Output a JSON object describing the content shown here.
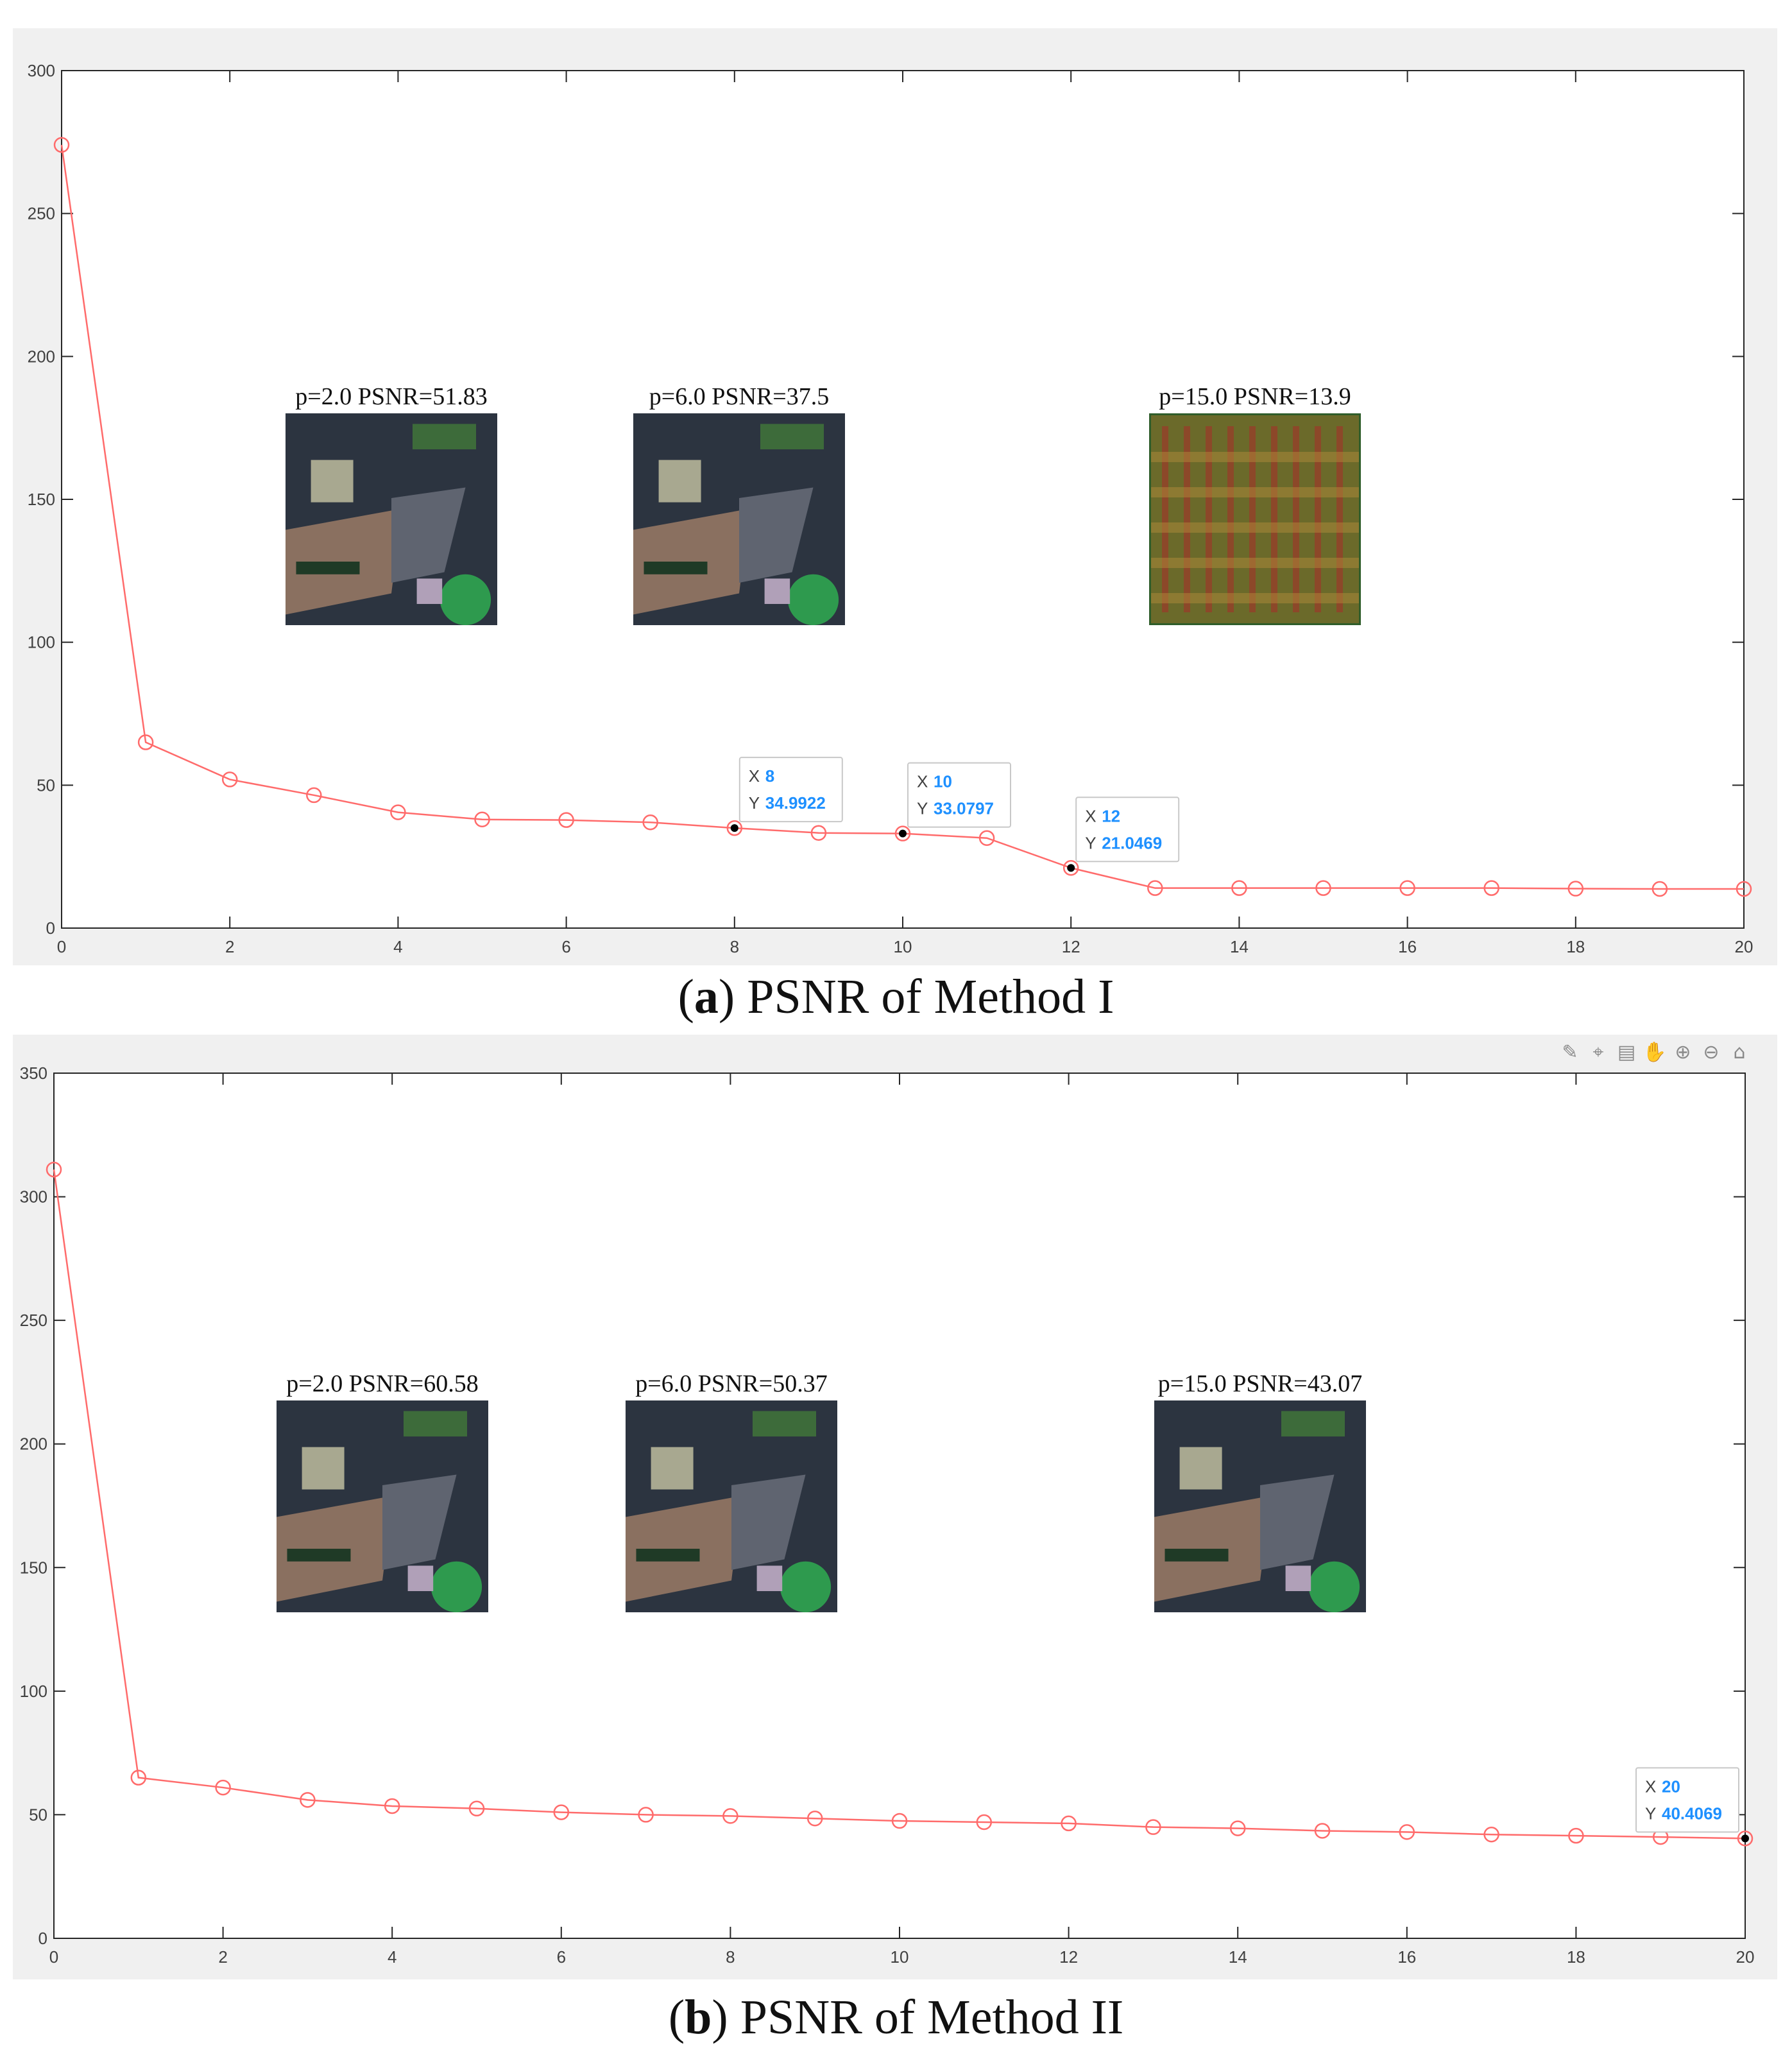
{
  "chart_data": [
    {
      "type": "line",
      "x": [
        0,
        1,
        2,
        3,
        4,
        5,
        6,
        7,
        8,
        9,
        10,
        11,
        12,
        13,
        14,
        15,
        16,
        17,
        18,
        19,
        20
      ],
      "series": [
        {
          "values": [
            274,
            65,
            52,
            46.5,
            40.5,
            38,
            37.8,
            37,
            34.9922,
            33.3,
            33.0797,
            31.5,
            21.0469,
            14,
            14,
            14,
            14,
            14,
            13.8,
            13.7,
            13.7
          ]
        }
      ],
      "xlim": [
        0,
        20
      ],
      "ylim": [
        0,
        300
      ],
      "xticks": [
        0,
        2,
        4,
        6,
        8,
        10,
        12,
        14,
        16,
        18,
        20
      ],
      "yticks": [
        0,
        50,
        100,
        150,
        200,
        250,
        300
      ],
      "line_color": "#ff6b6b",
      "grid": false,
      "datatips": [
        {
          "x_label": "X",
          "x_value": "8",
          "y_label": "Y",
          "y_value": "34.9922",
          "x": 8,
          "y": 34.9922
        },
        {
          "x_label": "X",
          "x_value": "10",
          "y_label": "Y",
          "y_value": "33.0797",
          "x": 10,
          "y": 33.0797
        },
        {
          "x_label": "X",
          "x_value": "12",
          "y_label": "Y",
          "y_value": "21.0469",
          "x": 12,
          "y": 21.0469
        }
      ],
      "inset_images": [
        {
          "label": "p=2.0   PSNR=51.83",
          "style": "aerial"
        },
        {
          "label": "p=6.0   PSNR=37.5",
          "style": "aerial"
        },
        {
          "label": "p=15.0   PSNR=13.9",
          "style": "distorted"
        }
      ],
      "caption_letter": "a",
      "caption_text": " PSNR of Method I"
    },
    {
      "type": "line",
      "x": [
        0,
        1,
        2,
        3,
        4,
        5,
        6,
        7,
        8,
        9,
        10,
        11,
        12,
        13,
        14,
        15,
        16,
        17,
        18,
        19,
        20
      ],
      "series": [
        {
          "values": [
            311,
            65,
            61,
            56,
            53.5,
            52.5,
            51,
            50,
            49.5,
            48.5,
            47.5,
            47,
            46.5,
            45,
            44.5,
            43.5,
            43,
            42,
            41.5,
            41,
            40.4069
          ]
        }
      ],
      "xlim": [
        0,
        20
      ],
      "ylim": [
        0,
        350
      ],
      "xticks": [
        0,
        2,
        4,
        6,
        8,
        10,
        12,
        14,
        16,
        18,
        20
      ],
      "yticks": [
        0,
        50,
        100,
        150,
        200,
        250,
        300,
        350
      ],
      "line_color": "#ff6b6b",
      "grid": false,
      "datatips": [
        {
          "x_label": "X",
          "x_value": "20",
          "y_label": "Y",
          "y_value": "40.4069",
          "x": 20,
          "y": 40.4069
        }
      ],
      "inset_images": [
        {
          "label": "p=2.0   PSNR=60.58",
          "style": "aerial"
        },
        {
          "label": "p=6.0   PSNR=50.37",
          "style": "aerial"
        },
        {
          "label": "p=15.0   PSNR=43.07",
          "style": "aerial"
        }
      ],
      "caption_letter": "b",
      "caption_text": " PSNR of Method II"
    }
  ],
  "toolbar": {
    "icons": [
      "brush-icon",
      "data-cursor-icon",
      "save-icon",
      "pan-icon",
      "zoom-in-icon",
      "zoom-out-icon",
      "home-icon"
    ]
  }
}
